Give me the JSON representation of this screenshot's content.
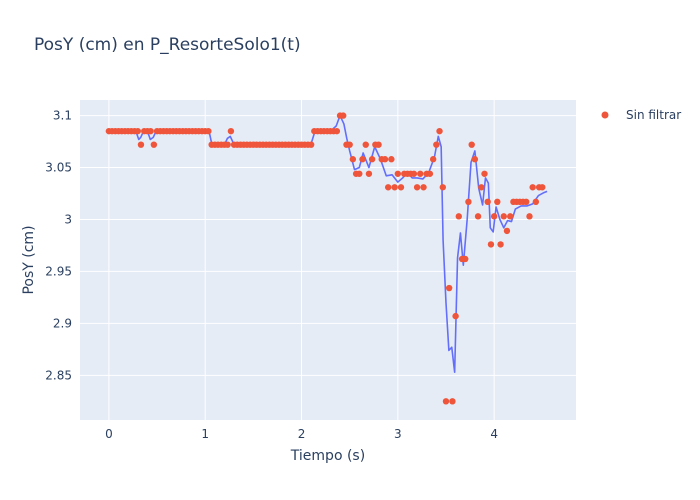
{
  "colors": {
    "paper_bg": "#ffffff",
    "plot_bg": "#e5ecf6",
    "grid": "#ffffff",
    "text": "#2a3f5f",
    "line_series": "#636efa",
    "marker_series": "#ef553b"
  },
  "chart_data": {
    "type": "scatter",
    "title": "PosY (cm) en P_ResorteSolo1(t)",
    "xlabel": "Tiempo (s)",
    "ylabel": "PosY (cm)",
    "xlim": [
      -0.3,
      4.85
    ],
    "ylim": [
      2.807,
      3.115
    ],
    "x_ticks": [
      0,
      1,
      2,
      3,
      4
    ],
    "x_tick_labels": [
      "0",
      "1",
      "2",
      "3",
      "4"
    ],
    "y_ticks": [
      2.85,
      2.9,
      2.95,
      3.0,
      3.05,
      3.1
    ],
    "y_tick_labels": [
      "2.85",
      "2.9",
      "2.95",
      "3",
      "3.05",
      "3.1"
    ],
    "grid": true,
    "legend_position": "top-right",
    "series": [
      {
        "mode": "markers",
        "name": "Sin filtrar",
        "color": "#ef553b",
        "points": [
          [
            0.0,
            3.085
          ],
          [
            0.033,
            3.085
          ],
          [
            0.067,
            3.085
          ],
          [
            0.1,
            3.085
          ],
          [
            0.133,
            3.085
          ],
          [
            0.167,
            3.085
          ],
          [
            0.2,
            3.085
          ],
          [
            0.233,
            3.085
          ],
          [
            0.267,
            3.085
          ],
          [
            0.3,
            3.085
          ],
          [
            0.333,
            3.072
          ],
          [
            0.367,
            3.085
          ],
          [
            0.4,
            3.085
          ],
          [
            0.433,
            3.085
          ],
          [
            0.467,
            3.072
          ],
          [
            0.5,
            3.085
          ],
          [
            0.533,
            3.085
          ],
          [
            0.567,
            3.085
          ],
          [
            0.6,
            3.085
          ],
          [
            0.633,
            3.085
          ],
          [
            0.667,
            3.085
          ],
          [
            0.7,
            3.085
          ],
          [
            0.733,
            3.085
          ],
          [
            0.767,
            3.085
          ],
          [
            0.8,
            3.085
          ],
          [
            0.833,
            3.085
          ],
          [
            0.867,
            3.085
          ],
          [
            0.9,
            3.085
          ],
          [
            0.933,
            3.085
          ],
          [
            0.967,
            3.085
          ],
          [
            1.0,
            3.085
          ],
          [
            1.033,
            3.085
          ],
          [
            1.067,
            3.072
          ],
          [
            1.1,
            3.072
          ],
          [
            1.133,
            3.072
          ],
          [
            1.167,
            3.072
          ],
          [
            1.2,
            3.072
          ],
          [
            1.233,
            3.072
          ],
          [
            1.267,
            3.085
          ],
          [
            1.3,
            3.072
          ],
          [
            1.333,
            3.072
          ],
          [
            1.367,
            3.072
          ],
          [
            1.4,
            3.072
          ],
          [
            1.433,
            3.072
          ],
          [
            1.467,
            3.072
          ],
          [
            1.5,
            3.072
          ],
          [
            1.533,
            3.072
          ],
          [
            1.567,
            3.072
          ],
          [
            1.6,
            3.072
          ],
          [
            1.633,
            3.072
          ],
          [
            1.667,
            3.072
          ],
          [
            1.7,
            3.072
          ],
          [
            1.733,
            3.072
          ],
          [
            1.767,
            3.072
          ],
          [
            1.8,
            3.072
          ],
          [
            1.833,
            3.072
          ],
          [
            1.867,
            3.072
          ],
          [
            1.9,
            3.072
          ],
          [
            1.933,
            3.072
          ],
          [
            1.967,
            3.072
          ],
          [
            2.0,
            3.072
          ],
          [
            2.033,
            3.072
          ],
          [
            2.067,
            3.072
          ],
          [
            2.1,
            3.072
          ],
          [
            2.133,
            3.085
          ],
          [
            2.167,
            3.085
          ],
          [
            2.2,
            3.085
          ],
          [
            2.233,
            3.085
          ],
          [
            2.267,
            3.085
          ],
          [
            2.3,
            3.085
          ],
          [
            2.333,
            3.085
          ],
          [
            2.367,
            3.085
          ],
          [
            2.4,
            3.1
          ],
          [
            2.433,
            3.1
          ],
          [
            2.467,
            3.072
          ],
          [
            2.5,
            3.072
          ],
          [
            2.533,
            3.058
          ],
          [
            2.567,
            3.044
          ],
          [
            2.6,
            3.044
          ],
          [
            2.633,
            3.058
          ],
          [
            2.667,
            3.072
          ],
          [
            2.7,
            3.044
          ],
          [
            2.733,
            3.058
          ],
          [
            2.767,
            3.072
          ],
          [
            2.8,
            3.072
          ],
          [
            2.833,
            3.058
          ],
          [
            2.867,
            3.058
          ],
          [
            2.9,
            3.031
          ],
          [
            2.933,
            3.058
          ],
          [
            2.967,
            3.031
          ],
          [
            3.0,
            3.044
          ],
          [
            3.033,
            3.031
          ],
          [
            3.067,
            3.044
          ],
          [
            3.1,
            3.044
          ],
          [
            3.133,
            3.044
          ],
          [
            3.167,
            3.044
          ],
          [
            3.2,
            3.031
          ],
          [
            3.233,
            3.044
          ],
          [
            3.267,
            3.031
          ],
          [
            3.3,
            3.044
          ],
          [
            3.333,
            3.044
          ],
          [
            3.367,
            3.058
          ],
          [
            3.4,
            3.072
          ],
          [
            3.433,
            3.085
          ],
          [
            3.467,
            3.031
          ],
          [
            3.5,
            2.825
          ],
          [
            3.533,
            2.934
          ],
          [
            3.567,
            2.825
          ],
          [
            3.6,
            2.907
          ],
          [
            3.633,
            3.003
          ],
          [
            3.667,
            2.962
          ],
          [
            3.7,
            2.962
          ],
          [
            3.733,
            3.017
          ],
          [
            3.767,
            3.072
          ],
          [
            3.8,
            3.058
          ],
          [
            3.833,
            3.003
          ],
          [
            3.867,
            3.031
          ],
          [
            3.9,
            3.044
          ],
          [
            3.933,
            3.017
          ],
          [
            3.967,
            2.976
          ],
          [
            4.0,
            3.003
          ],
          [
            4.033,
            3.017
          ],
          [
            4.067,
            2.976
          ],
          [
            4.1,
            3.003
          ],
          [
            4.133,
            2.989
          ],
          [
            4.167,
            3.003
          ],
          [
            4.2,
            3.017
          ],
          [
            4.233,
            3.017
          ],
          [
            4.267,
            3.017
          ],
          [
            4.3,
            3.017
          ],
          [
            4.333,
            3.017
          ],
          [
            4.367,
            3.003
          ],
          [
            4.4,
            3.031
          ],
          [
            4.433,
            3.017
          ],
          [
            4.467,
            3.031
          ],
          [
            4.5,
            3.031
          ]
        ]
      },
      {
        "mode": "lines",
        "color": "#636efa",
        "points": [
          [
            0.0,
            3.085
          ],
          [
            0.1,
            3.085
          ],
          [
            0.2,
            3.085
          ],
          [
            0.28,
            3.085
          ],
          [
            0.31,
            3.077
          ],
          [
            0.33,
            3.079
          ],
          [
            0.36,
            3.085
          ],
          [
            0.4,
            3.085
          ],
          [
            0.43,
            3.077
          ],
          [
            0.46,
            3.079
          ],
          [
            0.49,
            3.085
          ],
          [
            0.6,
            3.085
          ],
          [
            0.8,
            3.085
          ],
          [
            1.0,
            3.085
          ],
          [
            1.04,
            3.085
          ],
          [
            1.07,
            3.072
          ],
          [
            1.12,
            3.072
          ],
          [
            1.2,
            3.072
          ],
          [
            1.23,
            3.078
          ],
          [
            1.26,
            3.08
          ],
          [
            1.3,
            3.072
          ],
          [
            1.5,
            3.072
          ],
          [
            1.8,
            3.072
          ],
          [
            2.0,
            3.072
          ],
          [
            2.1,
            3.073
          ],
          [
            2.14,
            3.085
          ],
          [
            2.2,
            3.085
          ],
          [
            2.3,
            3.085
          ],
          [
            2.36,
            3.09
          ],
          [
            2.4,
            3.1
          ],
          [
            2.44,
            3.092
          ],
          [
            2.47,
            3.078
          ],
          [
            2.5,
            3.066
          ],
          [
            2.55,
            3.048
          ],
          [
            2.6,
            3.05
          ],
          [
            2.64,
            3.064
          ],
          [
            2.7,
            3.05
          ],
          [
            2.76,
            3.07
          ],
          [
            2.82,
            3.058
          ],
          [
            2.88,
            3.042
          ],
          [
            2.94,
            3.043
          ],
          [
            3.0,
            3.036
          ],
          [
            3.05,
            3.04
          ],
          [
            3.1,
            3.045
          ],
          [
            3.15,
            3.04
          ],
          [
            3.2,
            3.04
          ],
          [
            3.26,
            3.039
          ],
          [
            3.32,
            3.045
          ],
          [
            3.38,
            3.06
          ],
          [
            3.42,
            3.08
          ],
          [
            3.45,
            3.07
          ],
          [
            3.47,
            2.98
          ],
          [
            3.5,
            2.92
          ],
          [
            3.53,
            2.874
          ],
          [
            3.56,
            2.877
          ],
          [
            3.59,
            2.853
          ],
          [
            3.62,
            2.963
          ],
          [
            3.65,
            2.987
          ],
          [
            3.68,
            2.956
          ],
          [
            3.72,
            3.0
          ],
          [
            3.76,
            3.055
          ],
          [
            3.8,
            3.066
          ],
          [
            3.84,
            3.03
          ],
          [
            3.88,
            3.014
          ],
          [
            3.91,
            3.04
          ],
          [
            3.94,
            3.035
          ],
          [
            3.96,
            2.992
          ],
          [
            3.99,
            2.988
          ],
          [
            4.02,
            3.012
          ],
          [
            4.06,
            3.0
          ],
          [
            4.1,
            2.992
          ],
          [
            4.14,
            2.999
          ],
          [
            4.18,
            2.998
          ],
          [
            4.22,
            3.01
          ],
          [
            4.28,
            3.013
          ],
          [
            4.34,
            3.013
          ],
          [
            4.4,
            3.015
          ],
          [
            4.46,
            3.023
          ],
          [
            4.52,
            3.026
          ],
          [
            4.55,
            3.027
          ]
        ]
      }
    ]
  }
}
